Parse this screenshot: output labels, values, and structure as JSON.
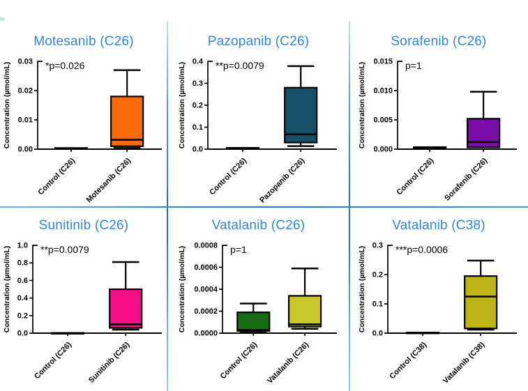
{
  "figure": {
    "background": "#ffffff",
    "title_color": "#2e86d5",
    "axis_color": "#000000",
    "divider_vertical_color": "#2e75b6",
    "divider_horizontal_color": "#3f87c2",
    "layout": "2x3 grid of box plots separated by blue divider lines"
  },
  "chart_data": [
    {
      "type": "box",
      "title": "Motesanib (C26)",
      "p_label": "*p=0.026",
      "ylabel": "Concentration (µmol/mL)",
      "ylim": [
        0,
        0.03
      ],
      "yticks": [
        0,
        0.01,
        0.02,
        0.03
      ],
      "ytick_labels": [
        "0.00",
        "0.01",
        "0.02",
        "0.03"
      ],
      "categories": [
        "Control (C26)",
        "Motesanib (C26)"
      ],
      "grid": "off",
      "series": [
        {
          "name": "Control (C26)",
          "color": "#000000",
          "q1": 5e-05,
          "median": 0.0002,
          "q3": 0.0004,
          "whisker_low": null,
          "whisker_high": null
        },
        {
          "name": "Motesanib (C26)",
          "color": "#fa6b0a",
          "q1": 0.001,
          "median": 0.0032,
          "q3": 0.018,
          "whisker_low": 0.0004,
          "whisker_high": 0.027
        }
      ]
    },
    {
      "type": "box",
      "title": "Pazopanib (C26)",
      "p_label": "**p=0.0079",
      "ylabel": "Concentration (µmol/mL)",
      "ylim": [
        0,
        0.4
      ],
      "yticks": [
        0,
        0.1,
        0.2,
        0.3,
        0.4
      ],
      "ytick_labels": [
        "0.0",
        "0.1",
        "0.2",
        "0.3",
        "0.4"
      ],
      "categories": [
        "Control (C26)",
        "Pazopanib (C26)"
      ],
      "grid": "off",
      "series": [
        {
          "name": "Control (C26)",
          "color": "#000000",
          "q1": 0.001,
          "median": 0.003,
          "q3": 0.006,
          "whisker_low": null,
          "whisker_high": null
        },
        {
          "name": "Pazopanib (C26)",
          "color": "#155068",
          "q1": 0.03,
          "median": 0.068,
          "q3": 0.28,
          "whisker_low": 0.014,
          "whisker_high": 0.378
        }
      ]
    },
    {
      "type": "box",
      "title": "Sorafenib (C26)",
      "p_label": "p=1",
      "ylabel": "Concentration (µmol/mL)",
      "ylim": [
        0,
        0.015
      ],
      "yticks": [
        0,
        0.005,
        0.01,
        0.015
      ],
      "ytick_labels": [
        "0.000",
        "0.005",
        "0.010",
        "0.015"
      ],
      "categories": [
        "Control (C26)",
        "Sorafenib (C26)"
      ],
      "grid": "off",
      "series": [
        {
          "name": "Control (C26)",
          "color": "#000000",
          "q1": 0.0001,
          "median": 0.0002,
          "q3": 0.00035,
          "whisker_low": null,
          "whisker_high": null
        },
        {
          "name": "Sorafenib (C26)",
          "color": "#7a0ca8",
          "q1": 0.0003,
          "median": 0.0012,
          "q3": 0.0052,
          "whisker_low": null,
          "whisker_high": 0.0098
        }
      ]
    },
    {
      "type": "box",
      "title": "Sunitinib (C26)",
      "p_label": "**p=0.0079",
      "ylabel": "Concentration (µmol/mL)",
      "ylim": [
        0,
        1.0
      ],
      "yticks": [
        0,
        0.2,
        0.4,
        0.6,
        0.8,
        1.0
      ],
      "ytick_labels": [
        "0.0",
        "0.2",
        "0.4",
        "0.6",
        "0.8",
        "1.0"
      ],
      "categories": [
        "Control (C26)",
        "Sunitinib (C26)"
      ],
      "grid": "off",
      "series": [
        {
          "name": "Control (C26)",
          "color": "#000000",
          "q1": 0.001,
          "median": 0.002,
          "q3": 0.003,
          "whisker_low": null,
          "whisker_high": null
        },
        {
          "name": "Sunitinib (C26)",
          "color": "#f60e86",
          "q1": 0.06,
          "median": 0.1,
          "q3": 0.5,
          "whisker_low": 0.04,
          "whisker_high": 0.81
        }
      ]
    },
    {
      "type": "box",
      "title": "Vatalanib (C26)",
      "p_label": "p=1",
      "ylabel": "Concentration (µmol/mL)",
      "ylim": [
        0,
        0.0008
      ],
      "yticks": [
        0,
        0.0002,
        0.0004,
        0.0006,
        0.0008
      ],
      "ytick_labels": [
        "0.0000",
        "0.0002",
        "0.0004",
        "0.0006",
        "0.0008"
      ],
      "categories": [
        "Control (C26)",
        "Vatalanib (C26)"
      ],
      "grid": "off",
      "series": [
        {
          "name": "Control (C26)",
          "color": "#156c13",
          "q1": 2e-05,
          "median": 2.8e-05,
          "q3": 0.00019,
          "whisker_low": 1.5e-05,
          "whisker_high": 0.00027
        },
        {
          "name": "Vatalanib (C26)",
          "color": "#c9c728",
          "q1": 6e-05,
          "median": 8e-05,
          "q3": 0.00034,
          "whisker_low": 4e-05,
          "whisker_high": 0.00059
        }
      ]
    },
    {
      "type": "box",
      "title": "Vatalanib (C38)",
      "p_label": "***p=0.0006",
      "ylabel": "Concentration (µmol/mL)",
      "ylim": [
        0,
        0.3
      ],
      "yticks": [
        0,
        0.1,
        0.2,
        0.3
      ],
      "ytick_labels": [
        "0.0",
        "0.1",
        "0.2",
        "0.3"
      ],
      "categories": [
        "Control (C38)",
        "Vatalanib (C38)"
      ],
      "grid": "off",
      "series": [
        {
          "name": "Control (C38)",
          "color": "#000000",
          "q1": 0.0005,
          "median": 0.001,
          "q3": 0.002,
          "whisker_low": null,
          "whisker_high": null
        },
        {
          "name": "Vatalanib (C38)",
          "color": "#bdb516",
          "q1": 0.016,
          "median": 0.125,
          "q3": 0.195,
          "whisker_low": 0.012,
          "whisker_high": 0.248
        }
      ]
    }
  ]
}
